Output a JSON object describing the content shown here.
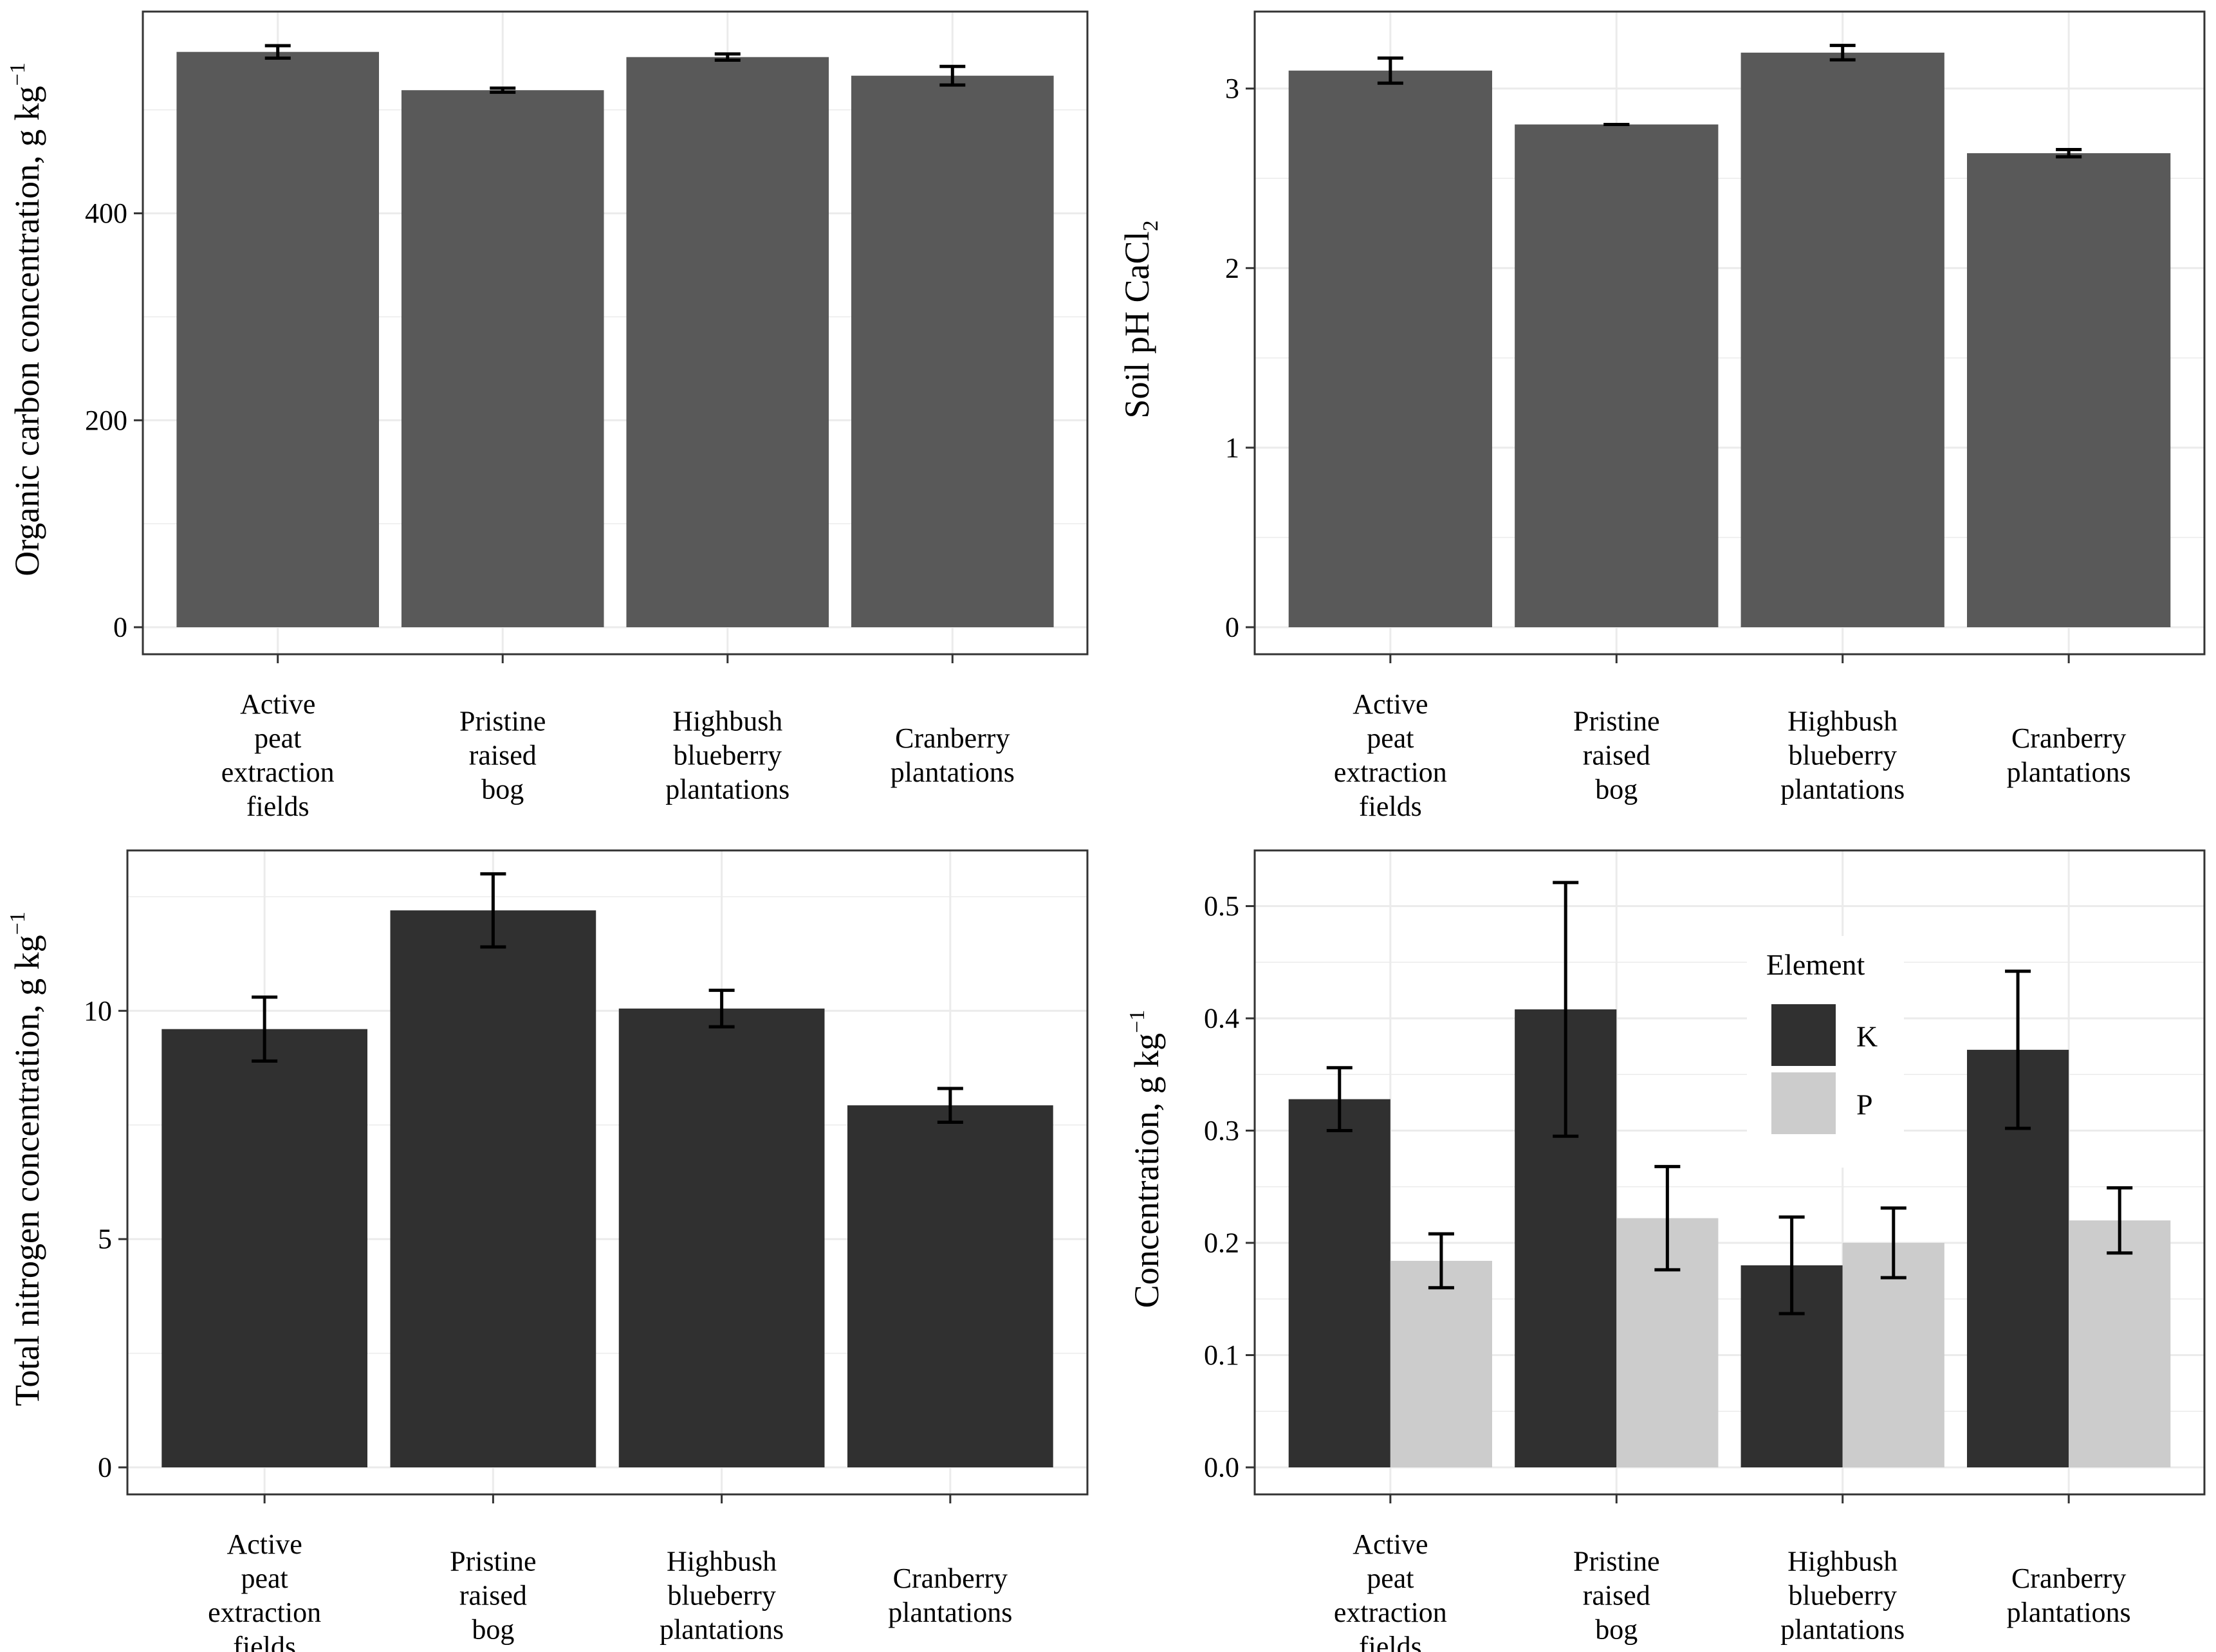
{
  "chart_data": [
    {
      "type": "bar",
      "title": "",
      "xlabel": "",
      "ylabel": "Organic carbon concentration, g kg",
      "ylabel_sup": "−1",
      "categories": [
        [
          "Active",
          "peat",
          "extraction",
          "fields"
        ],
        [
          "Pristine",
          "raised",
          "bog"
        ],
        [
          "Highbush",
          "blueberry",
          "plantations"
        ],
        [
          "Cranberry",
          "plantations"
        ]
      ],
      "series": [
        {
          "name": "Organic C",
          "color": "#595959",
          "values": [
            556,
            519,
            551,
            533
          ],
          "err": [
            6,
            2,
            3,
            9
          ]
        }
      ],
      "ylim": [
        0,
        590
      ],
      "yticks": [
        0,
        200,
        400
      ],
      "ytick_labels": [
        "0",
        "200",
        "400"
      ],
      "grid": true
    },
    {
      "type": "bar",
      "title": "",
      "xlabel": "",
      "ylabel": "Soil pH CaCl",
      "ylabel_sub": "2",
      "categories": [
        [
          "Active",
          "peat",
          "extraction",
          "fields"
        ],
        [
          "Pristine",
          "raised",
          "bog"
        ],
        [
          "Highbush",
          "blueberry",
          "plantations"
        ],
        [
          "Cranberry",
          "plantations"
        ]
      ],
      "series": [
        {
          "name": "pH",
          "color": "#595959",
          "values": [
            3.1,
            2.8,
            3.2,
            2.64
          ],
          "err": [
            0.07,
            0.0,
            0.04,
            0.02
          ]
        }
      ],
      "ylim": [
        0,
        3.4
      ],
      "yticks": [
        0,
        1,
        2,
        3
      ],
      "ytick_labels": [
        "0",
        "1",
        "2",
        "3"
      ],
      "grid": true
    },
    {
      "type": "bar",
      "title": "",
      "xlabel": "",
      "ylabel": "Total nitrogen concentration, g kg",
      "ylabel_sup": "−1",
      "categories": [
        [
          "Active",
          "peat",
          "extraction",
          "fields"
        ],
        [
          "Pristine",
          "raised",
          "bog"
        ],
        [
          "Highbush",
          "blueberry",
          "plantations"
        ],
        [
          "Cranberry",
          "plantations"
        ]
      ],
      "series": [
        {
          "name": "N",
          "color": "#303030",
          "values": [
            9.6,
            12.2,
            10.05,
            7.93
          ],
          "err": [
            0.7,
            0.8,
            0.4,
            0.37
          ]
        }
      ],
      "ylim": [
        0,
        13.4
      ],
      "yticks": [
        0,
        5,
        10
      ],
      "ytick_labels": [
        "0",
        "5",
        "10"
      ],
      "grid": true
    },
    {
      "type": "bar",
      "title": "",
      "xlabel": "",
      "ylabel": "Concentration,  g kg",
      "ylabel_sup": "−1",
      "categories": [
        [
          "Active",
          "peat",
          "extraction",
          "fields"
        ],
        [
          "Pristine",
          "raised",
          "bog"
        ],
        [
          "Highbush",
          "blueberry",
          "plantations"
        ],
        [
          "Cranberry",
          "plantations"
        ]
      ],
      "series": [
        {
          "name": "K",
          "color": "#303030",
          "values": [
            0.328,
            0.408,
            0.18,
            0.372
          ],
          "err": [
            0.028,
            0.113,
            0.043,
            0.07
          ]
        },
        {
          "name": "P",
          "color": "#cccccc",
          "values": [
            0.184,
            0.222,
            0.2,
            0.22
          ],
          "err": [
            0.024,
            0.046,
            0.031,
            0.029
          ]
        }
      ],
      "ylim": [
        0,
        0.545
      ],
      "yticks": [
        0,
        0.1,
        0.2,
        0.3,
        0.4,
        0.5
      ],
      "ytick_labels": [
        "0.0",
        "0.1",
        "0.2",
        "0.3",
        "0.4",
        "0.5"
      ],
      "grid": true,
      "legend": {
        "title": "Element",
        "position": "inside-top-right",
        "entries": [
          "K",
          "P"
        ]
      }
    }
  ]
}
